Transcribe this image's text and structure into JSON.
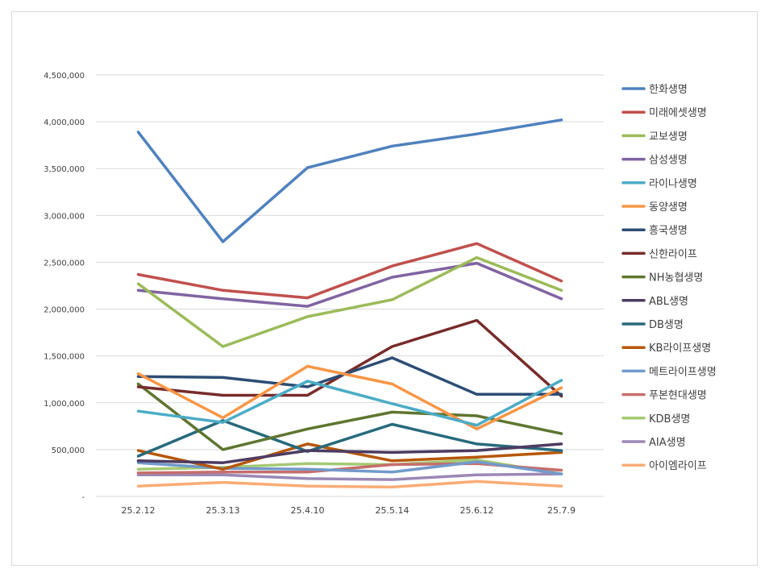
{
  "chart_data": {
    "type": "line",
    "title": "",
    "xlabel": "",
    "ylabel": "",
    "categories": [
      "25.2.12",
      "25.3.13",
      "25.4.10",
      "25.5.14",
      "25.6.12",
      "25.7.9"
    ],
    "ylim": [
      0,
      4500000
    ],
    "yticks": [
      0,
      500000,
      1000000,
      1500000,
      2000000,
      2500000,
      3000000,
      3500000,
      4000000,
      4500000
    ],
    "ytick_labels": [
      "-",
      "500,000",
      "1,000,000",
      "1,500,000",
      "2,000,000",
      "2,500,000",
      "3,000,000",
      "3,500,000",
      "4,000,000",
      "4,500,000"
    ],
    "grid": "horizontal",
    "legend_position": "right",
    "series": [
      {
        "name": "한화생명",
        "color": "#4f81bd",
        "values": [
          3890000,
          2720000,
          3510000,
          3740000,
          3870000,
          4020000
        ]
      },
      {
        "name": "미래에셋생명",
        "color": "#c0504d",
        "values": [
          2370000,
          2200000,
          2120000,
          2460000,
          2700000,
          2300000
        ]
      },
      {
        "name": "교보생명",
        "color": "#9bbb59",
        "values": [
          2270000,
          1600000,
          1920000,
          2100000,
          2550000,
          2200000
        ]
      },
      {
        "name": "삼성생명",
        "color": "#8064a2",
        "values": [
          2200000,
          2110000,
          2030000,
          2340000,
          2490000,
          2110000
        ]
      },
      {
        "name": "라이나생명",
        "color": "#4bacc6",
        "values": [
          910000,
          790000,
          1230000,
          990000,
          760000,
          1240000
        ]
      },
      {
        "name": "동양생명",
        "color": "#f79646",
        "values": [
          1310000,
          840000,
          1390000,
          1200000,
          720000,
          1160000
        ]
      },
      {
        "name": "흥국생명",
        "color": "#2c4d75",
        "values": [
          1280000,
          1270000,
          1170000,
          1480000,
          1090000,
          1090000
        ]
      },
      {
        "name": "신한라이프",
        "color": "#772c2a",
        "values": [
          1170000,
          1080000,
          1080000,
          1600000,
          1880000,
          1070000
        ]
      },
      {
        "name": "NH농협생명",
        "color": "#5f7530",
        "values": [
          1200000,
          500000,
          720000,
          900000,
          860000,
          670000
        ]
      },
      {
        "name": "ABL생명",
        "color": "#4d3b62",
        "values": [
          380000,
          360000,
          490000,
          470000,
          490000,
          560000
        ]
      },
      {
        "name": "DB생명",
        "color": "#276a7c",
        "values": [
          430000,
          810000,
          480000,
          770000,
          560000,
          490000
        ]
      },
      {
        "name": "KB라이프생명",
        "color": "#b65708",
        "values": [
          490000,
          290000,
          560000,
          380000,
          420000,
          470000
        ]
      },
      {
        "name": "메트라이프생명",
        "color": "#729aca",
        "values": [
          360000,
          300000,
          290000,
          260000,
          370000,
          240000
        ]
      },
      {
        "name": "푸본현대생명",
        "color": "#c66e6c",
        "values": [
          250000,
          260000,
          260000,
          340000,
          350000,
          280000
        ]
      },
      {
        "name": "KDB생명",
        "color": "#a5c973",
        "values": [
          290000,
          310000,
          350000,
          340000,
          390000,
          240000
        ]
      },
      {
        "name": "AIA생명",
        "color": "#9b88b5",
        "values": [
          230000,
          230000,
          190000,
          180000,
          230000,
          240000
        ]
      },
      {
        "name": "아이엠라이프",
        "color": "#f9ac76",
        "values": [
          110000,
          150000,
          110000,
          100000,
          160000,
          110000
        ]
      }
    ]
  }
}
